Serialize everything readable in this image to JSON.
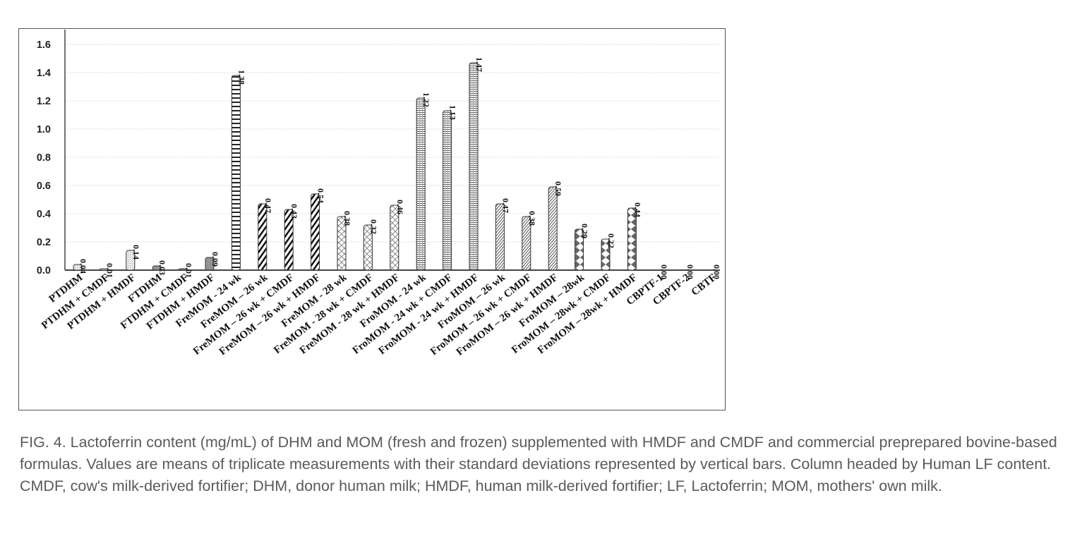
{
  "chart_data": {
    "type": "bar",
    "title": "",
    "xlabel": "",
    "ylabel": "",
    "ylim": [
      0,
      1.6
    ],
    "yticks": [
      "0.0",
      "0.2",
      "0.4",
      "0.6",
      "0.8",
      "1.0",
      "1.2",
      "1.4",
      "1.6"
    ],
    "grid": true,
    "categories": [
      "PTDHM",
      "PTDHM + CMDF",
      "PTDHM + HMDF",
      "FTDHM",
      "FTDHM + CMDF",
      "FTDHM + HMDF",
      "FreMOM - 24 wk",
      "FreMOM – 26 wk",
      "FreMOM – 26 wk + CMDF",
      "FreMOM – 26 wk + HMDF",
      "FreMOM - 28 wk",
      "FreMOM - 28 wk + CMDF",
      "FreMOM - 28 wk + HMDF",
      "FroMOM - 24 wk",
      "FroMOM - 24 wk + CMDF",
      "FroMOM - 24 wk + HMDF",
      "FroMOM – 26 wk",
      "FroMOM – 26 wk + CMDF",
      "FroMOM – 26 wk + HMDF",
      "FroMOM – 28wk",
      "FroMOM – 28wk + CMDF",
      "FroMOM – 28wk + HMDF",
      "CBPTF-1",
      "CBPTF-2",
      "CBTF"
    ],
    "values": [
      0.04,
      0.01,
      0.14,
      0.03,
      0.01,
      0.09,
      1.38,
      0.47,
      0.43,
      0.54,
      0.38,
      0.32,
      0.46,
      1.22,
      1.13,
      1.47,
      0.47,
      0.38,
      0.59,
      0.29,
      0.22,
      0.44,
      0.0,
      0.0,
      0.0
    ],
    "data_labels": [
      "0.04",
      "0.01",
      "0.14",
      "0.03",
      "0.01",
      "0.09",
      "1.38",
      "0.47",
      "0.43",
      "0.54",
      "0.38",
      "0.32",
      "0.46",
      "1.22",
      "1.13",
      "1.47",
      "0.47",
      "0.38",
      "0.59",
      "0.29",
      "0.22",
      "0.44",
      "0.00",
      "0.00",
      "0.00"
    ],
    "patterns": [
      "dots",
      "dots",
      "dots",
      "grey",
      "grey",
      "grey",
      "ladder",
      "hatch-bold",
      "hatch-bold",
      "hatch-bold",
      "cross",
      "cross",
      "cross",
      "hlines",
      "hlines",
      "hlines",
      "hatch-fine",
      "hatch-fine",
      "hatch-fine",
      "triangles",
      "triangles",
      "triangles",
      "none",
      "none",
      "none"
    ]
  },
  "caption": "FIG. 4. Lactoferrin content (mg/mL) of DHM and MOM (fresh and frozen) supplemented with HMDF and CMDF and commercial preprepared bovine-based formulas. Values are means of triplicate measurements with their standard deviations represented by vertical bars. Column headed by Human LF content. CMDF, cow's milk-derived fortifier; DHM, donor human milk; HMDF, human milk-derived fortifier; LF, Lactoferrin; MOM, mothers' own milk."
}
